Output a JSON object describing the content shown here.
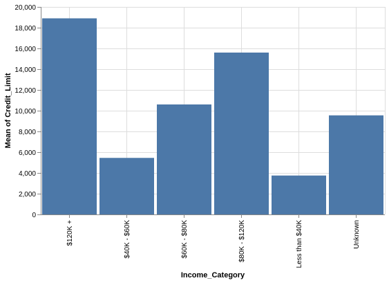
{
  "chart_data": {
    "type": "bar",
    "title": "",
    "xlabel": "Income_Category",
    "ylabel": "Mean of Credit_Limit",
    "categories": [
      "$120K +",
      "$40K - $60K",
      "$60K - $80K",
      "$80K - $120K",
      "Less than $40K",
      "Unknown"
    ],
    "values": [
      18900,
      5450,
      10600,
      15600,
      3750,
      9550
    ],
    "ylim": [
      0,
      20000
    ],
    "yticks": [
      0,
      2000,
      4000,
      6000,
      8000,
      10000,
      12000,
      14000,
      16000,
      18000,
      20000
    ],
    "ytick_labels": [
      "0",
      "2,000",
      "4,000",
      "6,000",
      "8,000",
      "10,000",
      "12,000",
      "14,000",
      "16,000",
      "18,000",
      "20,000"
    ],
    "grid": true,
    "bar_color": "#4c78a8"
  }
}
